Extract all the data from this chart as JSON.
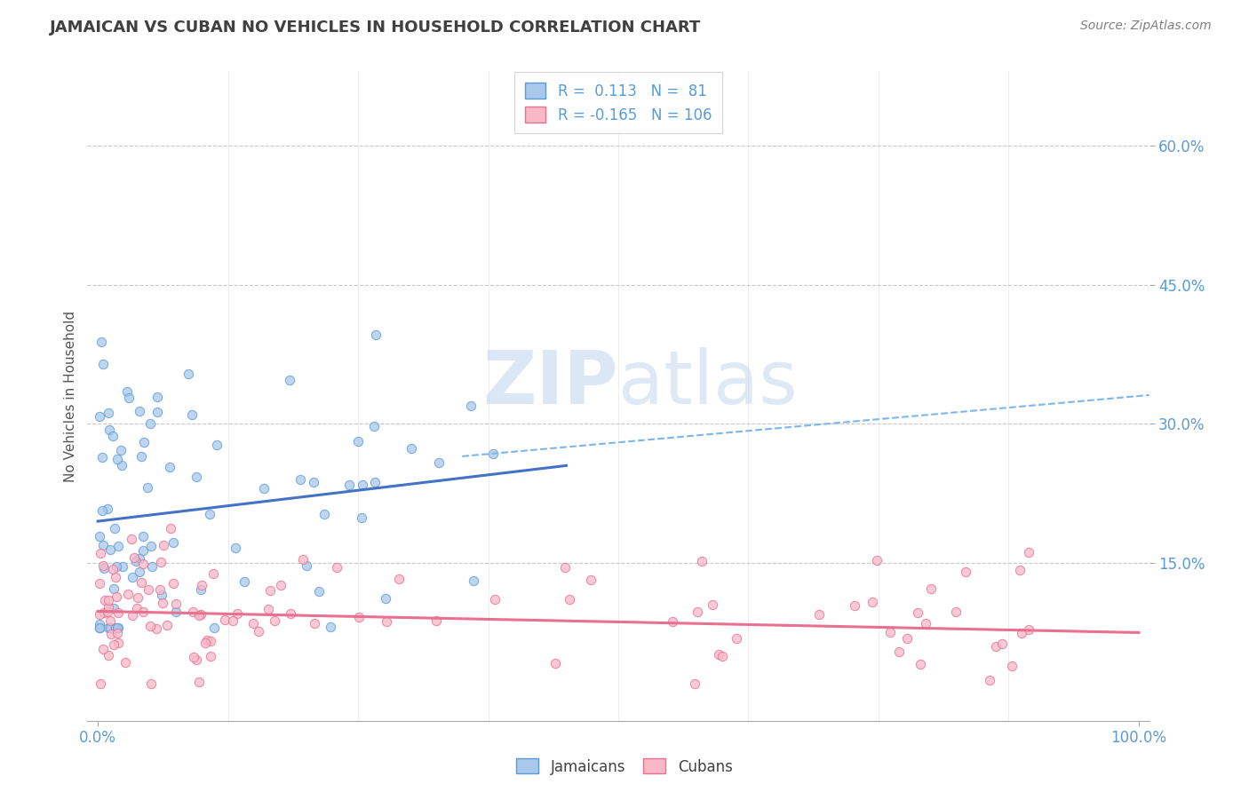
{
  "title": "JAMAICAN VS CUBAN NO VEHICLES IN HOUSEHOLD CORRELATION CHART",
  "source": "Source: ZipAtlas.com",
  "ylabel": "No Vehicles in Household",
  "right_ytick_labels": [
    "60.0%",
    "45.0%",
    "30.0%",
    "15.0%"
  ],
  "right_ytick_vals": [
    0.6,
    0.45,
    0.3,
    0.15
  ],
  "watermark_part1": "ZIP",
  "watermark_part2": "atlas",
  "legend_line1": "R =  0.113   N =  81",
  "legend_line2": "R = -0.165   N = 106",
  "color_jamaican_fill": "#A8C8EC",
  "color_jamaican_edge": "#5B9BD5",
  "color_cuban_fill": "#F8B8C8",
  "color_cuban_edge": "#E87090",
  "color_jamaican_line": "#4472C4",
  "color_cuban_line": "#E87090",
  "color_dashed": "#7EB6E8",
  "background_color": "#FFFFFF",
  "title_color": "#404040",
  "source_color": "#808080",
  "tick_color": "#5B9BD5",
  "grid_color": "#C8C8C8",
  "ylim_low": -0.02,
  "ylim_high": 0.68,
  "xlim_low": -1,
  "xlim_high": 101,
  "jamaican_seed": 12,
  "cuban_seed": 34
}
